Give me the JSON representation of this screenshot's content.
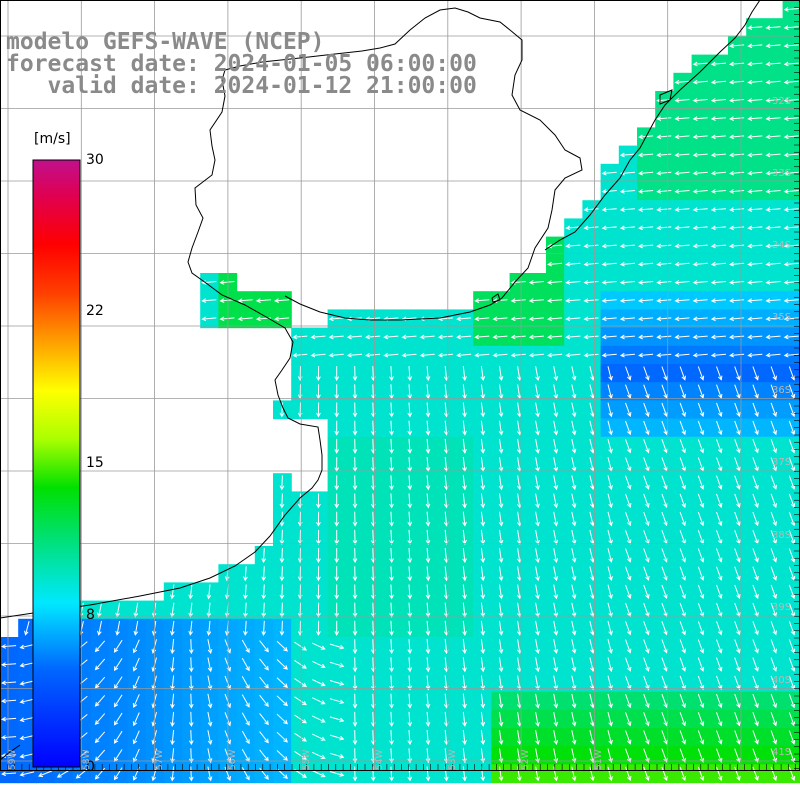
{
  "title": {
    "line1": "modelo GEFS-WAVE (NCEP)",
    "line2": "forecast date: 2024-01-05 06:00:00",
    "line3": "   valid date: 2024-01-12 21:00:00"
  },
  "colorbar": {
    "unit": "[m/s]",
    "ticks": [
      {
        "label": "30",
        "value": 30
      },
      {
        "label": "22",
        "value": 22
      },
      {
        "label": "15",
        "value": 15
      },
      {
        "label": "8",
        "value": 8
      },
      {
        "label": "0",
        "value": 0
      }
    ]
  },
  "lat_labels": [
    "32S",
    "33S",
    "34S",
    "35S",
    "36S",
    "37S",
    "38S",
    "39S",
    "40S",
    "41S"
  ],
  "lon_labels": [
    "59W",
    "58W",
    "57W",
    "56W",
    "55W",
    "54W",
    "53W",
    "52W",
    "51W"
  ],
  "colors": {
    "land": "#ffffff",
    "grid": "#9a9a9a",
    "coast": "#000000",
    "arrow": "#ffffff"
  }
}
